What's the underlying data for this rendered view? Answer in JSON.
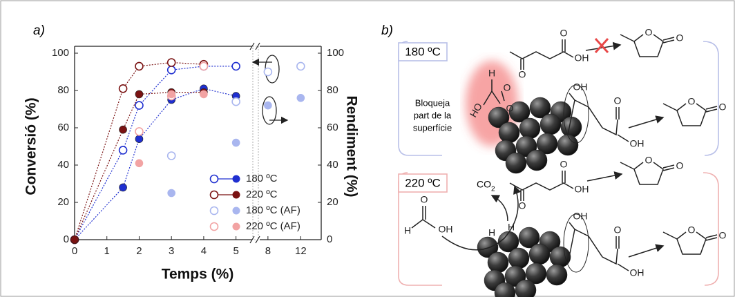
{
  "chart_data": {
    "type": "scatter",
    "panel_label": "a)",
    "xlabel": "Temps (%)",
    "ylabel": "Conversió (%)",
    "y2label": "Rendiment (%)",
    "xsegments": [
      {
        "xlim": [
          0,
          5.5
        ],
        "xticks": [
          0,
          1,
          2,
          3,
          4,
          5
        ]
      },
      {
        "xlim": [
          7,
          14.5
        ],
        "xticks": [
          8,
          12
        ]
      }
    ],
    "ylim": [
      0,
      100
    ],
    "yticks": [
      0,
      20,
      40,
      60,
      80,
      100
    ],
    "y2lim": [
      0,
      100
    ],
    "y2ticks": [
      0,
      20,
      40,
      60,
      80,
      100
    ],
    "series": [
      {
        "name": "180 ºC",
        "color": "#1f2fd0",
        "line": true,
        "x": [
          0,
          1.5,
          2,
          3,
          4,
          5
        ],
        "values": [
          0,
          48,
          72,
          91,
          93,
          93
        ],
        "y2values": [
          0,
          28,
          54,
          75,
          81,
          77
        ]
      },
      {
        "name": "220 ºC",
        "color": "#7a1212",
        "line": true,
        "x": [
          0,
          1.5,
          2,
          3,
          4
        ],
        "values": [
          0,
          81,
          93,
          95,
          94
        ],
        "y2values": [
          0,
          59,
          78,
          79,
          79
        ]
      },
      {
        "name": "180 ºC (AF)",
        "color": "#a9b6ef",
        "line": false,
        "x": [
          3,
          5,
          8,
          12
        ],
        "values": [
          45,
          74,
          90,
          93
        ],
        "y2values": [
          25,
          52,
          72,
          76
        ]
      },
      {
        "name": "220 ºC (AF)",
        "color": "#f2a3a3",
        "line": false,
        "x": [
          2,
          3,
          4
        ],
        "values": [
          58,
          77,
          93
        ],
        "y2values": [
          41,
          78,
          78
        ]
      }
    ]
  },
  "diagram": {
    "panel_label": "b)",
    "conditions": [
      "180 ºC",
      "220 ºC"
    ],
    "blocking_note": [
      "Bloqueja",
      "part de la",
      "superfície"
    ],
    "co2": {
      "text": "CO",
      "subscript": "2"
    },
    "atom_labels": {
      "oxygen": "O",
      "hydroxyl": "OH",
      "hydrogen": "H",
      "ho": "HO"
    }
  }
}
